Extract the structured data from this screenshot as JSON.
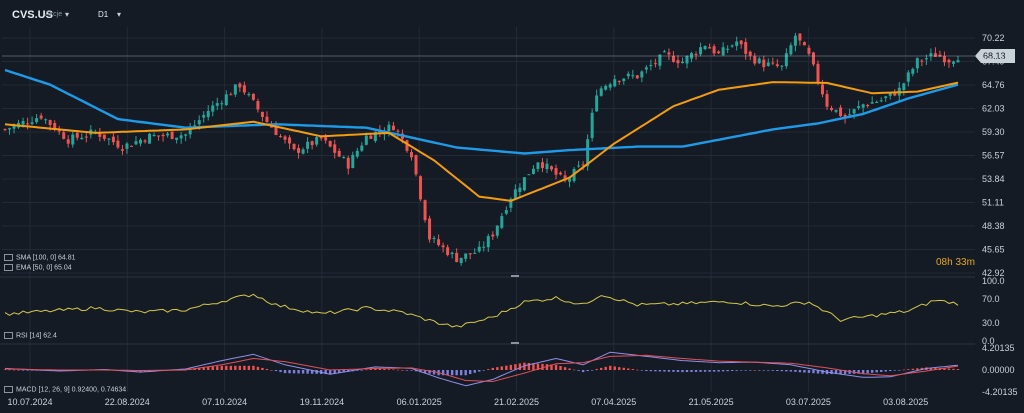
{
  "header": {
    "symbol": "CVS.US",
    "symbol_sub": "Akcje",
    "symbol_dropdown": "▾",
    "timeframe": "D1",
    "timeframe_dropdown": "▾"
  },
  "indicators": {
    "sma_label": "SMA [100, 0] 64.81",
    "ema_label": "EMA [50, 0] 65.04",
    "rsi_label": "RSI [14] 62.4",
    "macd_label": "MACD [12, 26, 9] 0.92400, 0.74634"
  },
  "timer": {
    "hours": "08",
    "h_unit": "h",
    "minutes": "33",
    "m_unit": "m"
  },
  "colors": {
    "background": "#151b24",
    "up": "#26a69a",
    "down": "#ef5350",
    "sma": "#1e9be8",
    "ema": "#f39c12",
    "rsi": "#d4c84a",
    "macd_line": "#8f8fe8",
    "signal_line": "#e0505a",
    "hist_pos": "#ef5350",
    "hist_neg": "#7b80e0",
    "grid": "#222a35",
    "price_line": "#c9d1d9"
  },
  "chart_data": [
    {
      "type": "candlestick",
      "name": "price",
      "y_ticks": [
        "70.22",
        "67.49",
        "64.76",
        "62.03",
        "59.30",
        "56.57",
        "53.84",
        "51.11",
        "48.38",
        "45.65",
        "42.92"
      ],
      "ylim": [
        42.92,
        71.5
      ],
      "last_price": "68.13",
      "x_ticks": [
        "10.07.2024",
        "22.08.2024",
        "07.10.2024",
        "19.11.2024",
        "06.01.2025",
        "21.02.2025",
        "07.04.2025",
        "21.05.2025",
        "03.07.2025",
        "03.08.2025"
      ],
      "anchors_close": [
        [
          0,
          59.6
        ],
        [
          8,
          61.2
        ],
        [
          14,
          58.4
        ],
        [
          20,
          59.3
        ],
        [
          26,
          57.6
        ],
        [
          32,
          58.8
        ],
        [
          40,
          59.0
        ],
        [
          45,
          61.8
        ],
        [
          52,
          64.8
        ],
        [
          58,
          60.5
        ],
        [
          64,
          57.0
        ],
        [
          70,
          58.5
        ],
        [
          76,
          55.5
        ],
        [
          80,
          58.8
        ],
        [
          86,
          60.0
        ],
        [
          90,
          56.8
        ],
        [
          94,
          47.0
        ],
        [
          100,
          44.6
        ],
        [
          105,
          45.5
        ],
        [
          108,
          47.5
        ],
        [
          112,
          51.8
        ],
        [
          118,
          56.0
        ],
        [
          124,
          53.5
        ],
        [
          128,
          55.6
        ],
        [
          131,
          64.0
        ],
        [
          135,
          65.6
        ],
        [
          140,
          65.8
        ],
        [
          146,
          68.2
        ],
        [
          150,
          67.5
        ],
        [
          155,
          69.5
        ],
        [
          158,
          68.3
        ],
        [
          162,
          69.8
        ],
        [
          165,
          68.0
        ],
        [
          168,
          67.2
        ],
        [
          172,
          66.8
        ],
        [
          175,
          70.5
        ],
        [
          178,
          68.1
        ],
        [
          182,
          62.5
        ],
        [
          186,
          61.0
        ],
        [
          190,
          62.5
        ],
        [
          194,
          63.0
        ],
        [
          198,
          64.2
        ],
        [
          202,
          67.5
        ],
        [
          206,
          68.3
        ],
        [
          209,
          67.7
        ],
        [
          211,
          68.13
        ]
      ],
      "sma_100": [
        [
          0,
          66.5
        ],
        [
          10,
          64.8
        ],
        [
          25,
          60.8
        ],
        [
          40,
          59.8
        ],
        [
          60,
          60.2
        ],
        [
          80,
          59.8
        ],
        [
          100,
          57.5
        ],
        [
          115,
          56.8
        ],
        [
          125,
          57.2
        ],
        [
          140,
          57.6
        ],
        [
          150,
          57.6
        ],
        [
          160,
          58.6
        ],
        [
          170,
          59.6
        ],
        [
          180,
          60.3
        ],
        [
          190,
          61.4
        ],
        [
          200,
          63.2
        ],
        [
          211,
          64.81
        ]
      ],
      "ema_50": [
        [
          0,
          60.2
        ],
        [
          20,
          59.2
        ],
        [
          40,
          59.6
        ],
        [
          55,
          60.5
        ],
        [
          70,
          58.8
        ],
        [
          85,
          59.2
        ],
        [
          95,
          56.0
        ],
        [
          105,
          51.8
        ],
        [
          112,
          51.3
        ],
        [
          125,
          54.0
        ],
        [
          135,
          58.0
        ],
        [
          148,
          62.3
        ],
        [
          158,
          64.2
        ],
        [
          170,
          65.1
        ],
        [
          182,
          65.0
        ],
        [
          192,
          63.8
        ],
        [
          202,
          64.0
        ],
        [
          211,
          65.04
        ]
      ]
    },
    {
      "type": "line",
      "name": "RSI [14]",
      "y_ticks": [
        "100.0",
        "70.0",
        "30.0",
        "0.0"
      ],
      "ylim": [
        0,
        100
      ],
      "anchors": [
        [
          0,
          45
        ],
        [
          10,
          50
        ],
        [
          20,
          55
        ],
        [
          30,
          48
        ],
        [
          40,
          52
        ],
        [
          50,
          70
        ],
        [
          55,
          78
        ],
        [
          60,
          60
        ],
        [
          70,
          45
        ],
        [
          80,
          55
        ],
        [
          88,
          48
        ],
        [
          95,
          32
        ],
        [
          100,
          23
        ],
        [
          108,
          40
        ],
        [
          115,
          65
        ],
        [
          122,
          72
        ],
        [
          128,
          60
        ],
        [
          132,
          78
        ],
        [
          140,
          60
        ],
        [
          150,
          62
        ],
        [
          160,
          66
        ],
        [
          170,
          58
        ],
        [
          178,
          65
        ],
        [
          185,
          35
        ],
        [
          192,
          42
        ],
        [
          200,
          50
        ],
        [
          206,
          68
        ],
        [
          211,
          62.4
        ]
      ]
    },
    {
      "type": "line+histogram",
      "name": "MACD [12, 26, 9]",
      "y_ticks": [
        "4.20135",
        "0.00000",
        "-4.20135"
      ],
      "ylim": [
        -4.20135,
        4.20135
      ],
      "macd": [
        [
          0,
          0.3
        ],
        [
          12,
          -0.2
        ],
        [
          22,
          0.1
        ],
        [
          30,
          -0.4
        ],
        [
          40,
          0.2
        ],
        [
          48,
          1.8
        ],
        [
          55,
          3.0
        ],
        [
          62,
          1.0
        ],
        [
          72,
          -0.8
        ],
        [
          82,
          0.6
        ],
        [
          90,
          0.3
        ],
        [
          96,
          -1.5
        ],
        [
          102,
          -3.0
        ],
        [
          108,
          -1.8
        ],
        [
          115,
          0.8
        ],
        [
          122,
          2.2
        ],
        [
          128,
          1.0
        ],
        [
          134,
          3.4
        ],
        [
          142,
          2.6
        ],
        [
          150,
          1.8
        ],
        [
          158,
          1.4
        ],
        [
          166,
          1.5
        ],
        [
          174,
          1.0
        ],
        [
          182,
          -0.4
        ],
        [
          190,
          -1.4
        ],
        [
          196,
          -1.3
        ],
        [
          204,
          0.3
        ],
        [
          211,
          0.924
        ]
      ],
      "signal": [
        [
          0,
          0.2
        ],
        [
          12,
          0.0
        ],
        [
          22,
          0.0
        ],
        [
          30,
          -0.1
        ],
        [
          40,
          0.0
        ],
        [
          48,
          1.0
        ],
        [
          55,
          2.2
        ],
        [
          62,
          1.6
        ],
        [
          72,
          0.0
        ],
        [
          82,
          0.3
        ],
        [
          90,
          0.4
        ],
        [
          96,
          -0.5
        ],
        [
          102,
          -2.0
        ],
        [
          108,
          -2.2
        ],
        [
          115,
          -0.6
        ],
        [
          122,
          1.2
        ],
        [
          128,
          1.4
        ],
        [
          134,
          2.6
        ],
        [
          142,
          2.8
        ],
        [
          150,
          2.2
        ],
        [
          158,
          1.7
        ],
        [
          166,
          1.5
        ],
        [
          174,
          1.3
        ],
        [
          182,
          0.4
        ],
        [
          190,
          -0.7
        ],
        [
          196,
          -1.1
        ],
        [
          204,
          -0.2
        ],
        [
          211,
          0.746
        ]
      ]
    }
  ]
}
